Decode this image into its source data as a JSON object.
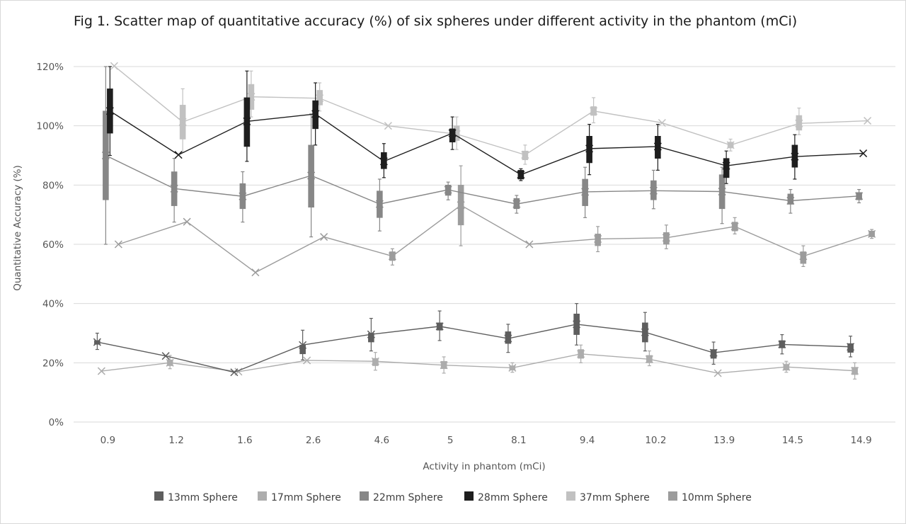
{
  "chart_data": {
    "type": "line",
    "title": "Fig 1. Scatter map of quantitative accuracy (%) of six spheres under different activity in the phantom (mCi)",
    "xlabel": "Activity in phantom (mCi)",
    "ylabel": "Quantitative Accuracy (%)",
    "categories": [
      "0.9",
      "1.2",
      "1.6",
      "2.6",
      "4.6",
      "5",
      "8.1",
      "9.4",
      "10.2",
      "13.9",
      "14.5",
      "14.9"
    ],
    "ylim": [
      0,
      120
    ],
    "y_ticks": [
      "0%",
      "20%",
      "40%",
      "60%",
      "80%",
      "100%",
      "120%"
    ],
    "grid": true,
    "legend_position": "bottom",
    "series": [
      {
        "name": "13mm Sphere",
        "color": "#5e5e5e",
        "values": [
          27,
          22.3,
          16.8,
          26,
          29.6,
          32.3,
          28.2,
          33,
          30.3,
          23.4,
          26.2,
          25.4
        ],
        "boxes": [
          [
            27.5,
            26.2,
            30,
            24.5
          ],
          null,
          null,
          [
            26,
            23,
            31,
            21
          ],
          [
            30,
            27,
            35,
            24
          ],
          [
            33.5,
            31,
            37.5,
            27.5
          ],
          [
            30.5,
            26.5,
            33,
            23.5
          ],
          [
            36.5,
            29.5,
            40,
            26
          ],
          [
            33.5,
            27,
            37,
            24
          ],
          [
            24.5,
            21.5,
            27,
            19.5
          ],
          [
            27.5,
            25,
            29.5,
            23
          ],
          [
            26.5,
            23.5,
            29,
            22
          ]
        ]
      },
      {
        "name": "17mm Sphere",
        "color": "#adadad",
        "values": [
          17.2,
          20,
          17,
          20.8,
          20.5,
          19.2,
          18.3,
          23,
          21.2,
          16.5,
          18.6,
          17.3
        ],
        "boxes": [
          null,
          [
            21,
            19,
            22.5,
            18
          ],
          null,
          null,
          [
            21.5,
            19,
            23.5,
            17.5
          ],
          [
            20.5,
            18,
            22,
            16.5
          ],
          [
            19,
            17.5,
            20,
            16.8
          ],
          [
            24.5,
            21.5,
            26,
            20
          ],
          [
            22.5,
            20,
            24,
            19
          ],
          null,
          [
            19.5,
            17.5,
            20.5,
            16.8
          ],
          [
            18.5,
            16,
            20,
            14.5
          ]
        ]
      },
      {
        "name": "22mm Sphere",
        "color": "#878787",
        "values": [
          90,
          78.8,
          76.2,
          83.2,
          73.6,
          78.4,
          73.6,
          77.7,
          78.1,
          77.8,
          74.7,
          76.3
        ],
        "boxes": [
          [
            105,
            75,
            120,
            60
          ],
          [
            84.5,
            73,
            89,
            67.5
          ],
          [
            80.5,
            72,
            84.5,
            67.5
          ],
          [
            93.5,
            72.5,
            104,
            62.5
          ],
          [
            78,
            69,
            82,
            64.5
          ],
          [
            80,
            76.5,
            81,
            75
          ],
          [
            75.5,
            72,
            76.5,
            70.5
          ],
          [
            82,
            73,
            86,
            69
          ],
          [
            81.5,
            75,
            85,
            72
          ],
          [
            83.5,
            72,
            86,
            67
          ],
          [
            77,
            73.5,
            78.5,
            70.5
          ],
          [
            77.5,
            75,
            78.5,
            74
          ]
        ]
      },
      {
        "name": "28mm Sphere",
        "color": "#1e1e1e",
        "values": [
          105,
          90.2,
          101.5,
          104,
          88,
          97.5,
          83.5,
          92.3,
          93,
          86.5,
          89.6,
          90.7
        ],
        "boxes": [
          [
            112.5,
            97.5,
            120,
            90
          ],
          null,
          [
            109.5,
            93,
            118.5,
            88
          ],
          [
            108.5,
            99,
            114.5,
            93.5
          ],
          [
            91,
            85.5,
            94,
            82.5
          ],
          [
            99,
            94.5,
            103,
            92
          ],
          [
            85,
            82,
            85.5,
            81.5
          ],
          [
            96.5,
            87.5,
            100.5,
            83.5
          ],
          [
            96.5,
            89,
            100.5,
            85
          ],
          [
            89,
            82.5,
            91.5,
            80.5
          ],
          [
            93.5,
            86,
            97,
            82
          ],
          null
        ]
      },
      {
        "name": "37mm Sphere",
        "color": "#c1c1c1",
        "values": [
          120.2,
          101.3,
          109.8,
          109.3,
          100,
          97.2,
          90.2,
          105,
          101,
          93.5,
          100.8,
          101.7
        ],
        "boxes": [
          null,
          [
            107,
            95.5,
            112.5,
            91
          ],
          [
            114,
            105.5,
            118.5,
            103
          ],
          [
            112,
            107,
            114.5,
            105
          ],
          null,
          [
            100,
            95,
            103,
            92
          ],
          [
            91.5,
            88.5,
            93.5,
            87
          ],
          [
            106.5,
            103.5,
            109.5,
            101
          ],
          null,
          [
            94.5,
            92.5,
            95.5,
            91.5
          ],
          [
            103.5,
            98.5,
            106,
            97
          ],
          null
        ]
      },
      {
        "name": "10mm Sphere",
        "color": "#9c9c9c",
        "values": [
          60,
          67.6,
          50.5,
          62.5,
          56,
          73.2,
          60,
          61.8,
          62.2,
          66,
          56,
          63.5
        ],
        "boxes": [
          null,
          null,
          null,
          null,
          [
            57.5,
            54.5,
            58.5,
            53
          ],
          [
            80,
            66.5,
            86.5,
            59.5
          ],
          null,
          [
            63.5,
            59.5,
            66,
            57.5
          ],
          [
            64,
            60,
            66.5,
            58.5
          ],
          [
            67.5,
            64.5,
            69,
            63.5
          ],
          [
            57.5,
            53.5,
            59.5,
            52.5
          ],
          [
            64.5,
            62.5,
            65,
            62
          ]
        ]
      }
    ]
  }
}
